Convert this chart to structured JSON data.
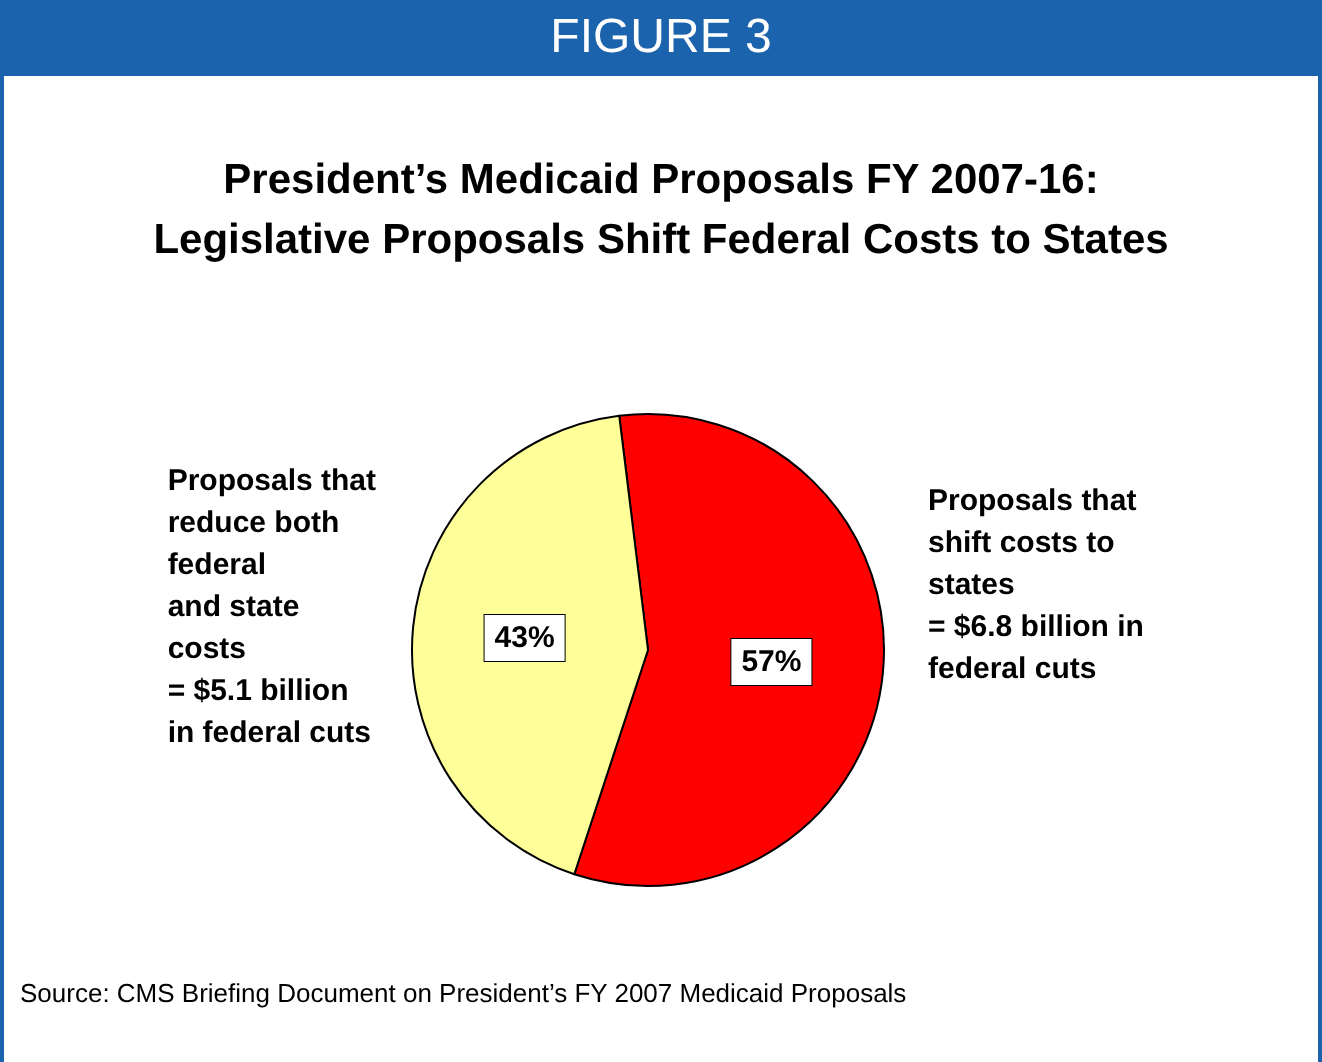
{
  "chart_data": {
    "type": "pie",
    "title": "President’s Medicaid Proposals FY 2007-16:\nLegislative Proposals Shift Federal Costs to States",
    "categories": [
      "Proposals that\nshift costs to\nstates\n= $6.8 billion in\nfederal cuts",
      "Proposals that\nreduce both\nfederal\nand state\ncosts\n= $5.1 billion\nin federal cuts"
    ],
    "values": [
      57,
      43
    ],
    "colors": [
      "#ff0000",
      "#ffff99"
    ],
    "value_labels": [
      "57%",
      "43%"
    ],
    "legend": false,
    "annotations": [
      "FIGURE 3",
      "Source: CMS Briefing Document on President’s FY 2007 Medicaid Proposals"
    ]
  }
}
